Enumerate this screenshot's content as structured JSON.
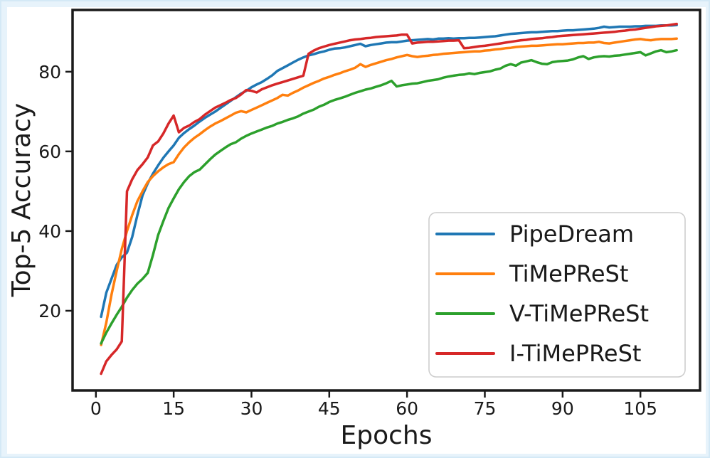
{
  "figure": {
    "outer_border_color": "#e7f3fb",
    "background": "#ffffff",
    "axis_color": "#1a1a1a",
    "legend_border_color": "#cccccc"
  },
  "chart_data": {
    "type": "line",
    "title": "",
    "xlabel": "Epochs",
    "ylabel": "Top-5 Accuracy",
    "xlim": [
      -4.5,
      116.5
    ],
    "ylim": [
      0,
      95.5
    ],
    "xticks": [
      0,
      15,
      30,
      45,
      60,
      75,
      90,
      105
    ],
    "yticks": [
      20,
      40,
      60,
      80
    ],
    "grid": false,
    "legend_position": "lower right",
    "epochs": {
      "start": 1,
      "end": 112,
      "step": 1
    },
    "series": [
      {
        "name": "PipeDream",
        "color": "#1f77b4",
        "values": [
          18.5,
          24.5,
          28.0,
          31.5,
          33.4,
          34.6,
          38.5,
          44.0,
          49.0,
          52.0,
          54.4,
          56.5,
          58.4,
          60.0,
          61.5,
          63.4,
          64.6,
          65.6,
          66.5,
          67.5,
          68.4,
          69.2,
          70.0,
          70.9,
          71.8,
          72.7,
          73.6,
          74.5,
          75.2,
          76.1,
          76.8,
          77.4,
          78.2,
          79.1,
          80.2,
          80.9,
          81.6,
          82.3,
          83.0,
          83.6,
          84.1,
          84.4,
          84.8,
          85.1,
          85.5,
          85.8,
          85.9,
          86.1,
          86.4,
          86.7,
          87.0,
          86.4,
          86.7,
          86.9,
          87.1,
          87.3,
          87.4,
          87.4,
          87.6,
          87.8,
          87.9,
          88.0,
          88.1,
          88.2,
          88.1,
          88.3,
          88.3,
          88.4,
          88.3,
          88.4,
          88.4,
          88.5,
          88.5,
          88.6,
          88.7,
          88.8,
          88.9,
          89.1,
          89.3,
          89.5,
          89.6,
          89.7,
          89.8,
          89.9,
          89.9,
          90.0,
          90.1,
          90.2,
          90.2,
          90.3,
          90.4,
          90.4,
          90.5,
          90.6,
          90.7,
          90.8,
          91.0,
          91.3,
          91.1,
          91.2,
          91.3,
          91.3,
          91.3,
          91.4,
          91.4,
          91.5,
          91.5,
          91.5,
          91.6,
          91.6,
          91.6,
          91.7
        ]
      },
      {
        "name": "TiMePReSt",
        "color": "#ff7f0e",
        "values": [
          11.4,
          17.0,
          24.0,
          30.0,
          35.5,
          40.0,
          44.0,
          47.5,
          50.0,
          52.3,
          53.8,
          55.0,
          56.0,
          56.8,
          57.3,
          59.3,
          61.0,
          62.3,
          63.4,
          64.3,
          65.3,
          66.2,
          67.0,
          67.6,
          68.3,
          69.0,
          69.7,
          70.1,
          69.8,
          70.4,
          71.0,
          71.6,
          72.2,
          72.8,
          73.4,
          74.2,
          74.0,
          74.7,
          75.3,
          76.0,
          76.6,
          77.2,
          77.7,
          78.3,
          78.7,
          79.2,
          79.6,
          80.1,
          80.5,
          81.0,
          81.9,
          81.2,
          81.7,
          82.1,
          82.5,
          82.9,
          83.2,
          83.6,
          83.9,
          84.2,
          83.9,
          83.7,
          83.9,
          84.0,
          84.2,
          84.3,
          84.5,
          84.6,
          84.7,
          84.8,
          84.9,
          85.0,
          85.1,
          85.1,
          85.3,
          85.4,
          85.6,
          85.7,
          85.9,
          86.0,
          86.2,
          86.3,
          86.4,
          86.5,
          86.5,
          86.6,
          86.7,
          86.8,
          86.9,
          86.9,
          87.0,
          87.1,
          87.2,
          87.2,
          87.3,
          87.3,
          87.5,
          87.2,
          87.1,
          87.3,
          87.5,
          87.7,
          87.9,
          88.1,
          88.2,
          88.0,
          87.9,
          88.1,
          88.2,
          88.2,
          88.2,
          88.3
        ]
      },
      {
        "name": "V-TiMePReSt",
        "color": "#2ca02c",
        "values": [
          11.8,
          14.5,
          16.8,
          19.0,
          21.0,
          23.3,
          25.2,
          26.8,
          28.0,
          29.5,
          34.0,
          39.0,
          42.5,
          45.8,
          48.2,
          50.5,
          52.3,
          53.8,
          54.8,
          55.4,
          56.7,
          58.0,
          59.2,
          60.1,
          61.0,
          61.8,
          62.3,
          63.2,
          63.9,
          64.5,
          65.0,
          65.5,
          66.0,
          66.4,
          67.0,
          67.4,
          67.9,
          68.3,
          68.8,
          69.5,
          70.0,
          70.5,
          71.2,
          71.7,
          72.4,
          72.9,
          73.3,
          73.7,
          74.2,
          74.7,
          75.1,
          75.5,
          75.8,
          76.2,
          76.6,
          77.1,
          77.7,
          76.3,
          76.6,
          76.8,
          77.0,
          77.1,
          77.4,
          77.7,
          77.9,
          78.1,
          78.5,
          78.8,
          79.0,
          79.2,
          79.3,
          79.6,
          79.4,
          79.7,
          79.9,
          80.1,
          80.5,
          80.8,
          81.5,
          81.9,
          81.5,
          82.3,
          82.6,
          82.9,
          82.4,
          82.0,
          81.9,
          82.4,
          82.6,
          82.7,
          82.8,
          83.1,
          83.6,
          83.9,
          83.2,
          83.6,
          83.8,
          83.9,
          83.8,
          84.0,
          84.1,
          84.3,
          84.5,
          84.7,
          84.9,
          84.1,
          84.6,
          85.1,
          85.4,
          84.9,
          85.1,
          85.4
        ]
      },
      {
        "name": "I-TiMePReSt",
        "color": "#d62728",
        "values": [
          4.2,
          7.3,
          8.9,
          10.3,
          12.3,
          50.0,
          53.0,
          55.3,
          56.8,
          58.5,
          61.5,
          62.5,
          64.5,
          67.0,
          69.0,
          64.8,
          65.9,
          66.5,
          67.4,
          68.1,
          69.2,
          70.1,
          71.0,
          71.6,
          72.2,
          72.9,
          73.4,
          74.3,
          75.4,
          75.2,
          74.8,
          75.6,
          76.1,
          76.6,
          77.0,
          77.4,
          77.8,
          78.2,
          78.6,
          79.0,
          84.5,
          85.3,
          85.9,
          86.3,
          86.7,
          87.0,
          87.3,
          87.6,
          87.9,
          88.1,
          88.2,
          88.4,
          88.5,
          88.7,
          88.8,
          88.9,
          89.0,
          89.1,
          89.3,
          89.3,
          87.1,
          87.3,
          87.4,
          87.5,
          87.5,
          87.6,
          87.7,
          87.8,
          87.8,
          87.9,
          85.9,
          86.0,
          86.2,
          86.4,
          86.5,
          86.7,
          86.9,
          87.1,
          87.3,
          87.5,
          87.7,
          87.9,
          88.0,
          88.2,
          88.3,
          88.4,
          88.6,
          88.7,
          88.9,
          89.0,
          89.1,
          89.2,
          89.3,
          89.4,
          89.5,
          89.6,
          89.7,
          89.8,
          89.9,
          90.0,
          90.2,
          90.3,
          90.5,
          90.6,
          90.8,
          91.0,
          91.2,
          91.4,
          91.5,
          91.6,
          91.8,
          92.0
        ]
      }
    ]
  }
}
